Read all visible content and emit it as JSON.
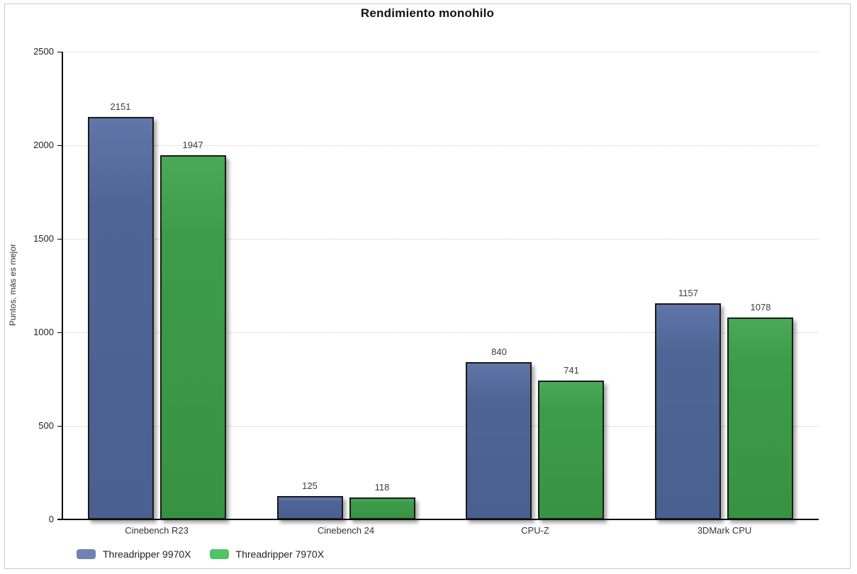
{
  "chart_data": {
    "type": "bar",
    "title": "Rendimiento monohilo",
    "xlabel": "",
    "ylabel": "Puntos, más es mejor",
    "categories": [
      "Cinebench R23",
      "Cinebench 24",
      "CPU-Z",
      "3DMark CPU"
    ],
    "series": [
      {
        "name": "Threadripper 9970X",
        "values": [
          2151,
          125,
          840,
          1157
        ],
        "bar_color": "#4f6596",
        "bar_color_top": "#6076a8",
        "bar_color_bottom": "#4a6090",
        "legend_color": "#6e82b4"
      },
      {
        "name": "Threadripper 7970X",
        "values": [
          1947,
          118,
          741,
          1078
        ],
        "bar_color": "#3c9c4a",
        "bar_color_top": "#4aa957",
        "bar_color_bottom": "#389341",
        "legend_color": "#50c364"
      }
    ],
    "ylim": [
      0,
      2500
    ],
    "yticks": [
      0,
      500,
      1000,
      1500,
      2000,
      2500
    ],
    "grid": "horizontal-dotted",
    "legend_position": "bottom-left",
    "bar_border_color": "#1a1a1a",
    "axis_color": "#000000",
    "grid_color": "#c9c9c9",
    "value_labels_shown": true
  }
}
